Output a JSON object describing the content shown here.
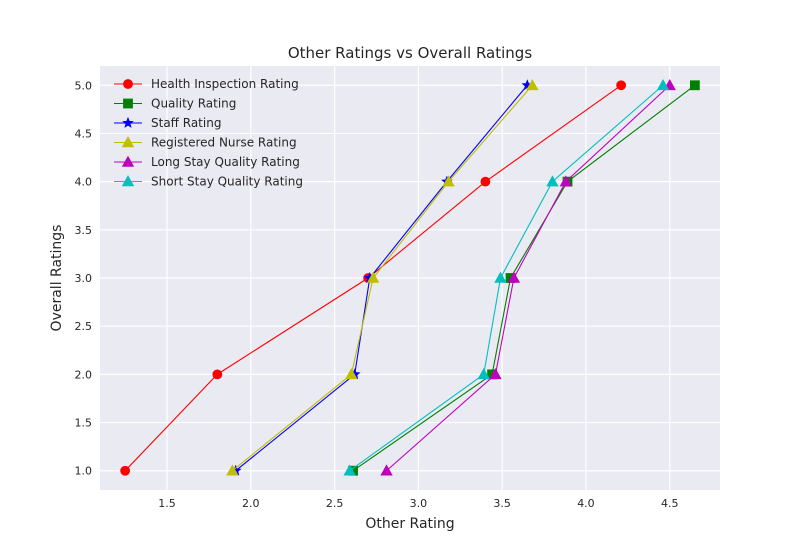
{
  "chart_data": {
    "type": "line",
    "title": "Other Ratings vs Overall Ratings",
    "xlabel": "Other Rating",
    "ylabel": "Overall Ratings",
    "xlim": [
      1.1,
      4.8
    ],
    "ylim": [
      0.8,
      5.2
    ],
    "xticks": [
      1.5,
      2.0,
      2.5,
      3.0,
      3.5,
      4.0,
      4.5
    ],
    "xtick_labels": [
      "1.5",
      "2.0",
      "2.5",
      "3.0",
      "3.5",
      "4.0",
      "4.5"
    ],
    "yticks": [
      1.0,
      1.5,
      2.0,
      2.5,
      3.0,
      3.5,
      4.0,
      4.5,
      5.0
    ],
    "ytick_labels": [
      "1.0",
      "1.5",
      "2.0",
      "2.5",
      "3.0",
      "3.5",
      "4.0",
      "4.5",
      "5.0"
    ],
    "grid": true,
    "legend_position": "top-left",
    "series": [
      {
        "name": "Health Inspection Rating",
        "color": "#ff0000",
        "marker": "circle",
        "x": [
          1.25,
          1.8,
          2.7,
          3.4,
          4.21
        ],
        "y": [
          1,
          2,
          3,
          4,
          5
        ]
      },
      {
        "name": "Quality Rating",
        "color": "#008000",
        "marker": "square",
        "x": [
          2.61,
          3.44,
          3.55,
          3.89,
          4.65
        ],
        "y": [
          1,
          2,
          3,
          4,
          5
        ]
      },
      {
        "name": "Staff Rating",
        "color": "#0000ff",
        "marker": "star",
        "x": [
          1.91,
          2.62,
          2.71,
          3.17,
          3.65
        ],
        "y": [
          1,
          2,
          3,
          4,
          5
        ]
      },
      {
        "name": "Registered Nurse Rating",
        "color": "#bfbf00",
        "marker": "triangle",
        "x": [
          1.89,
          2.6,
          2.73,
          3.18,
          3.68
        ],
        "y": [
          1,
          2,
          3,
          4,
          5
        ]
      },
      {
        "name": "Long Stay Quality Rating",
        "color": "#bf00bf",
        "marker": "triangle",
        "x": [
          2.81,
          3.46,
          3.57,
          3.88,
          4.5
        ],
        "y": [
          1,
          2,
          3,
          4,
          5
        ]
      },
      {
        "name": "Short Stay Quality Rating",
        "color": "#00bfbf",
        "marker": "triangle",
        "x": [
          2.59,
          3.39,
          3.49,
          3.8,
          4.46
        ],
        "y": [
          1,
          2,
          3,
          4,
          5
        ]
      }
    ]
  }
}
